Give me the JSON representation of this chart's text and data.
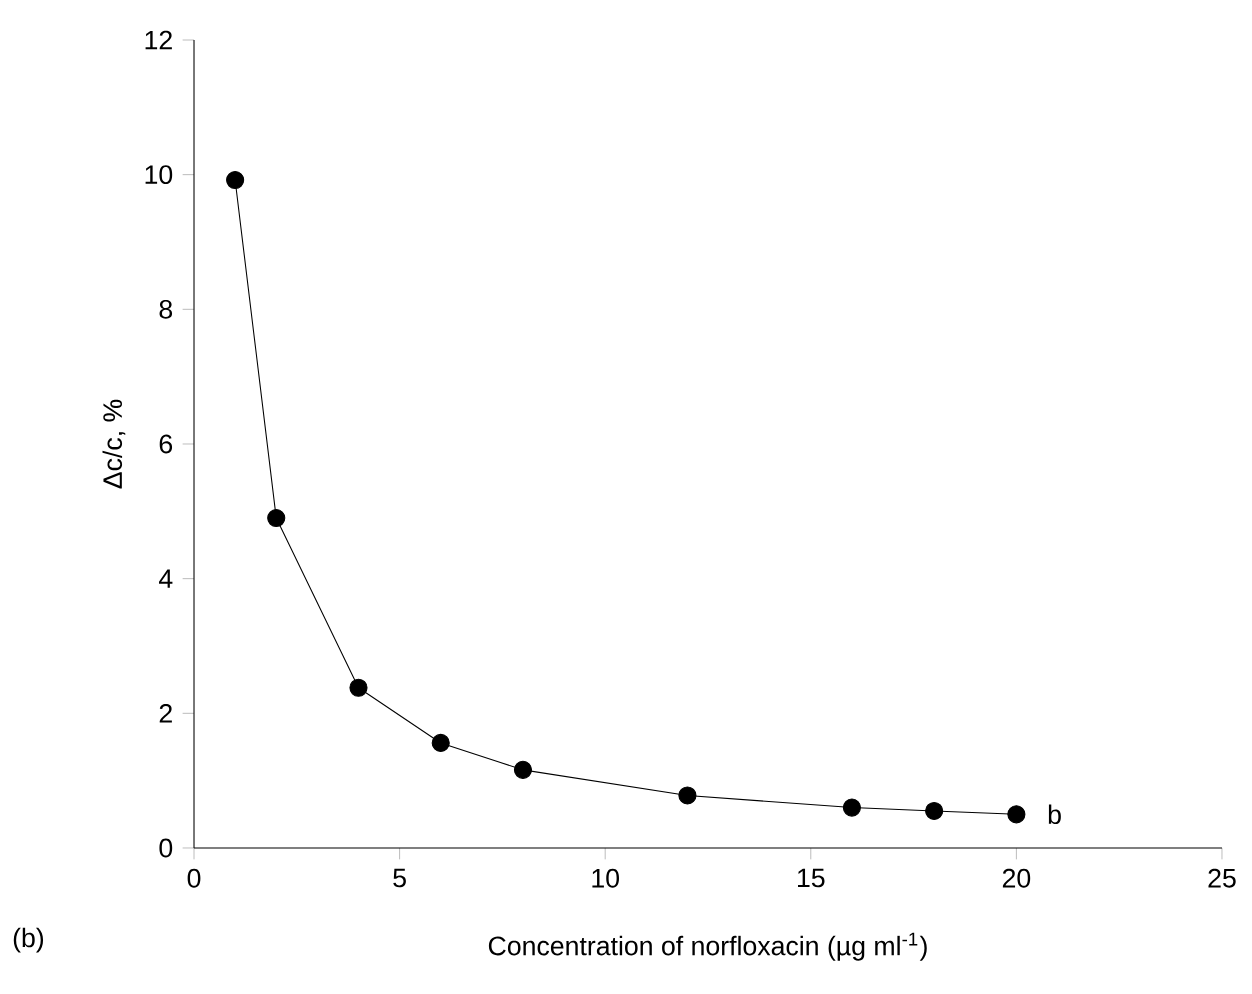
{
  "chart_data": {
    "type": "line",
    "xlabel": "Concentration of norfloxacin (µg ml$^{-1}$)",
    "ylabel": "Δc/c, %",
    "x": [
      1,
      2,
      4,
      6,
      8,
      12,
      16,
      18,
      20
    ],
    "series": [
      {
        "color": "#000000",
        "values": [
          9.92,
          4.9,
          2.38,
          1.56,
          1.16,
          0.78,
          0.6,
          0.55,
          0.5
        ]
      }
    ],
    "xlim": [
      0,
      25
    ],
    "ylim": [
      0,
      12
    ],
    "xticks": [
      0,
      5,
      10,
      15,
      20,
      25
    ],
    "yticks": [
      0,
      2,
      4,
      6,
      8,
      10,
      12
    ],
    "marker": "circle",
    "line_style": "solid",
    "grid": false,
    "annotations": [
      {
        "text": "b",
        "x": 20,
        "y": 0.5
      },
      "(b)"
    ]
  }
}
